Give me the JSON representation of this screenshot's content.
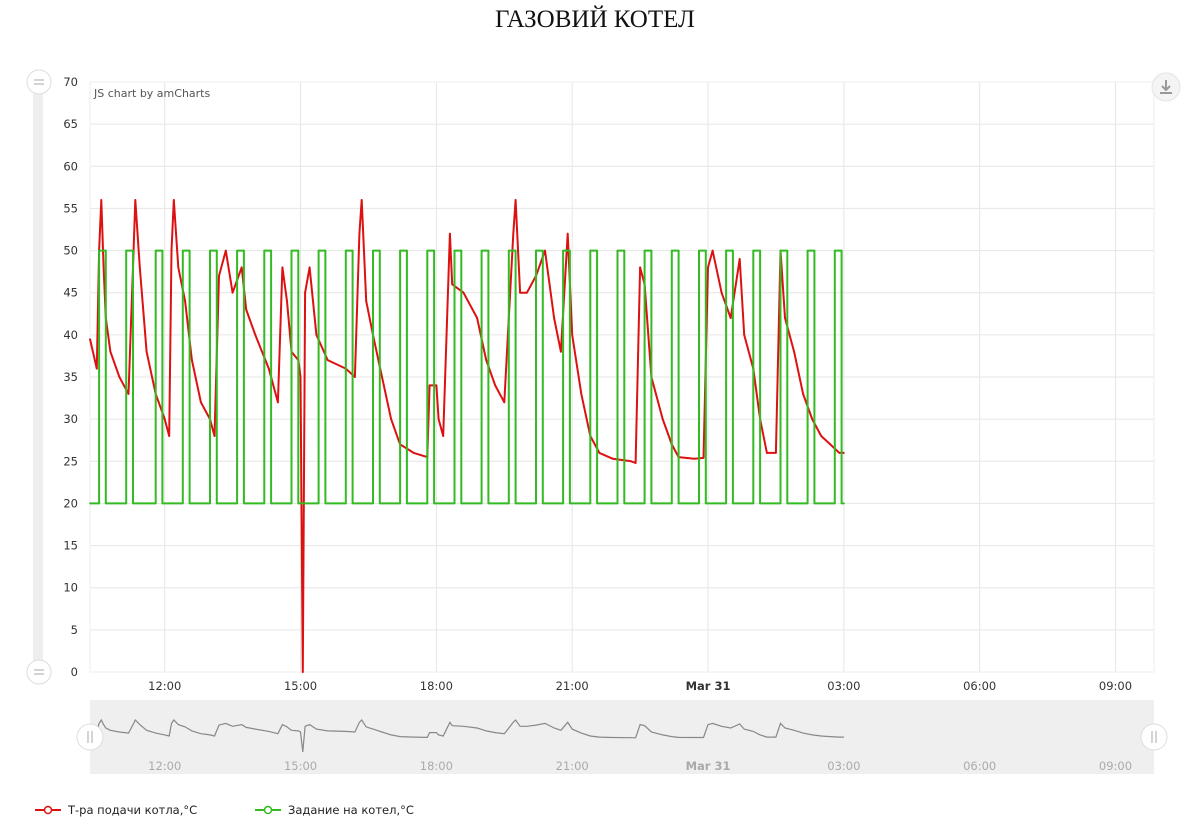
{
  "title": "ГАЗОВИЙ КОТЕЛ",
  "credit": "JS chart by amCharts",
  "chart_data": {
    "type": "line",
    "title": "ГАЗОВИЙ КОТЕЛ",
    "x_unit": "hours since midnight Mar 30",
    "x_range": [
      10.35,
      33.85
    ],
    "ylim": [
      0,
      70
    ],
    "y_ticks": [
      0,
      5,
      10,
      15,
      20,
      25,
      30,
      35,
      40,
      45,
      50,
      55,
      60,
      65,
      70
    ],
    "x_ticks": [
      {
        "x": 12,
        "label": "12:00",
        "bold": false
      },
      {
        "x": 15,
        "label": "15:00",
        "bold": false
      },
      {
        "x": 18,
        "label": "18:00",
        "bold": false
      },
      {
        "x": 21,
        "label": "21:00",
        "bold": false
      },
      {
        "x": 24,
        "label": "Mar 31",
        "bold": true
      },
      {
        "x": 27,
        "label": "03:00",
        "bold": false
      },
      {
        "x": 30,
        "label": "06:00",
        "bold": false
      },
      {
        "x": 33,
        "label": "09:00",
        "bold": false
      }
    ],
    "grid": true,
    "legend_position": "bottom",
    "series": [
      {
        "name": "Т-ра подачи котла,°С",
        "color": "#dd1111",
        "points": [
          [
            10.35,
            39.5
          ],
          [
            10.5,
            36
          ],
          [
            10.55,
            50
          ],
          [
            10.6,
            56
          ],
          [
            10.65,
            48
          ],
          [
            10.7,
            42
          ],
          [
            10.8,
            38
          ],
          [
            11,
            35
          ],
          [
            11.2,
            33
          ],
          [
            11.3,
            48
          ],
          [
            11.35,
            56
          ],
          [
            11.45,
            48
          ],
          [
            11.6,
            38
          ],
          [
            11.8,
            33
          ],
          [
            12,
            30
          ],
          [
            12.1,
            28
          ],
          [
            12.15,
            50
          ],
          [
            12.2,
            56
          ],
          [
            12.3,
            48
          ],
          [
            12.45,
            44
          ],
          [
            12.6,
            37
          ],
          [
            12.8,
            32
          ],
          [
            13,
            30
          ],
          [
            13.1,
            28
          ],
          [
            13.2,
            47
          ],
          [
            13.35,
            50
          ],
          [
            13.5,
            45
          ],
          [
            13.7,
            48
          ],
          [
            13.8,
            43
          ],
          [
            14,
            40
          ],
          [
            14.3,
            36
          ],
          [
            14.5,
            32
          ],
          [
            14.6,
            48
          ],
          [
            14.7,
            44
          ],
          [
            14.8,
            38
          ],
          [
            14.95,
            37
          ],
          [
            15,
            35
          ],
          [
            15.05,
            0
          ],
          [
            15.1,
            45
          ],
          [
            15.2,
            48
          ],
          [
            15.35,
            40
          ],
          [
            15.6,
            37
          ],
          [
            16,
            36
          ],
          [
            16.2,
            35
          ],
          [
            16.3,
            52
          ],
          [
            16.35,
            56
          ],
          [
            16.45,
            44
          ],
          [
            16.6,
            40
          ],
          [
            16.8,
            35
          ],
          [
            17,
            30
          ],
          [
            17.2,
            27
          ],
          [
            17.5,
            26
          ],
          [
            17.8,
            25.5
          ],
          [
            17.85,
            34
          ],
          [
            18,
            34
          ],
          [
            18.05,
            30
          ],
          [
            18.15,
            28
          ],
          [
            18.3,
            52
          ],
          [
            18.35,
            46
          ],
          [
            18.6,
            45
          ],
          [
            18.9,
            42
          ],
          [
            19.1,
            37
          ],
          [
            19.3,
            34
          ],
          [
            19.5,
            32
          ],
          [
            19.7,
            52
          ],
          [
            19.75,
            56
          ],
          [
            19.85,
            45
          ],
          [
            20,
            45
          ],
          [
            20.2,
            47
          ],
          [
            20.4,
            50
          ],
          [
            20.6,
            42
          ],
          [
            20.75,
            38
          ],
          [
            20.9,
            52
          ],
          [
            21,
            40
          ],
          [
            21.2,
            33
          ],
          [
            21.4,
            28
          ],
          [
            21.6,
            26
          ],
          [
            21.9,
            25.3
          ],
          [
            22.3,
            25
          ],
          [
            22.4,
            24.8
          ],
          [
            22.5,
            48
          ],
          [
            22.6,
            46
          ],
          [
            22.75,
            35
          ],
          [
            23,
            30
          ],
          [
            23.2,
            27
          ],
          [
            23.35,
            25.5
          ],
          [
            23.7,
            25.3
          ],
          [
            23.9,
            25.4
          ],
          [
            24,
            48
          ],
          [
            24.1,
            50
          ],
          [
            24.3,
            45
          ],
          [
            24.5,
            42
          ],
          [
            24.7,
            49
          ],
          [
            24.8,
            40
          ],
          [
            25,
            36
          ],
          [
            25.15,
            30
          ],
          [
            25.3,
            26
          ],
          [
            25.5,
            26
          ],
          [
            25.6,
            50
          ],
          [
            25.7,
            42
          ],
          [
            25.9,
            38
          ],
          [
            26.1,
            33
          ],
          [
            26.3,
            30
          ],
          [
            26.5,
            28
          ],
          [
            26.7,
            27
          ],
          [
            26.9,
            26
          ],
          [
            27,
            26
          ]
        ]
      },
      {
        "name": "Задание на котел,°С",
        "color": "#33bb22",
        "points": [
          [
            10.35,
            20
          ],
          [
            10.55,
            20
          ],
          [
            10.55,
            50
          ],
          [
            10.7,
            50
          ],
          [
            10.7,
            20
          ],
          [
            11.15,
            20
          ],
          [
            11.15,
            50
          ],
          [
            11.3,
            50
          ],
          [
            11.3,
            20
          ],
          [
            11.8,
            20
          ],
          [
            11.8,
            50
          ],
          [
            11.95,
            50
          ],
          [
            11.95,
            20
          ],
          [
            12.4,
            20
          ],
          [
            12.4,
            50
          ],
          [
            12.55,
            50
          ],
          [
            12.55,
            20
          ],
          [
            13.0,
            20
          ],
          [
            13.0,
            50
          ],
          [
            13.15,
            50
          ],
          [
            13.15,
            20
          ],
          [
            13.6,
            20
          ],
          [
            13.6,
            50
          ],
          [
            13.75,
            50
          ],
          [
            13.75,
            20
          ],
          [
            14.2,
            20
          ],
          [
            14.2,
            50
          ],
          [
            14.35,
            50
          ],
          [
            14.35,
            20
          ],
          [
            14.8,
            20
          ],
          [
            14.8,
            50
          ],
          [
            14.95,
            50
          ],
          [
            14.95,
            20
          ],
          [
            15.4,
            20
          ],
          [
            15.4,
            50
          ],
          [
            15.55,
            50
          ],
          [
            15.55,
            20
          ],
          [
            16.0,
            20
          ],
          [
            16.0,
            50
          ],
          [
            16.15,
            50
          ],
          [
            16.15,
            20
          ],
          [
            16.6,
            20
          ],
          [
            16.6,
            50
          ],
          [
            16.75,
            50
          ],
          [
            16.75,
            20
          ],
          [
            17.2,
            20
          ],
          [
            17.2,
            50
          ],
          [
            17.35,
            50
          ],
          [
            17.35,
            20
          ],
          [
            17.8,
            20
          ],
          [
            17.8,
            50
          ],
          [
            17.95,
            50
          ],
          [
            17.95,
            20
          ],
          [
            18.4,
            20
          ],
          [
            18.4,
            50
          ],
          [
            18.55,
            50
          ],
          [
            18.55,
            20
          ],
          [
            19.0,
            20
          ],
          [
            19.0,
            50
          ],
          [
            19.15,
            50
          ],
          [
            19.15,
            20
          ],
          [
            19.6,
            20
          ],
          [
            19.6,
            50
          ],
          [
            19.75,
            50
          ],
          [
            19.75,
            20
          ],
          [
            20.2,
            20
          ],
          [
            20.2,
            50
          ],
          [
            20.35,
            50
          ],
          [
            20.35,
            20
          ],
          [
            20.8,
            20
          ],
          [
            20.8,
            50
          ],
          [
            20.95,
            50
          ],
          [
            20.95,
            20
          ],
          [
            21.4,
            20
          ],
          [
            21.4,
            50
          ],
          [
            21.55,
            50
          ],
          [
            21.55,
            20
          ],
          [
            22.0,
            20
          ],
          [
            22.0,
            50
          ],
          [
            22.15,
            50
          ],
          [
            22.15,
            20
          ],
          [
            22.6,
            20
          ],
          [
            22.6,
            50
          ],
          [
            22.75,
            50
          ],
          [
            22.75,
            20
          ],
          [
            23.2,
            20
          ],
          [
            23.2,
            50
          ],
          [
            23.35,
            50
          ],
          [
            23.35,
            20
          ],
          [
            23.8,
            20
          ],
          [
            23.8,
            50
          ],
          [
            23.95,
            50
          ],
          [
            23.95,
            20
          ],
          [
            24.4,
            20
          ],
          [
            24.4,
            50
          ],
          [
            24.55,
            50
          ],
          [
            24.55,
            20
          ],
          [
            25.0,
            20
          ],
          [
            25.0,
            50
          ],
          [
            25.15,
            50
          ],
          [
            25.15,
            20
          ],
          [
            25.6,
            20
          ],
          [
            25.6,
            50
          ],
          [
            25.75,
            50
          ],
          [
            25.75,
            20
          ],
          [
            26.2,
            20
          ],
          [
            26.2,
            50
          ],
          [
            26.35,
            50
          ],
          [
            26.35,
            20
          ],
          [
            26.8,
            20
          ],
          [
            26.8,
            50
          ],
          [
            26.95,
            50
          ],
          [
            26.95,
            20
          ],
          [
            27.0,
            20
          ]
        ]
      }
    ]
  },
  "legend": [
    {
      "label": "Т-ра подачи котла,°С",
      "color": "#dd1111"
    },
    {
      "label": "Задание на котел,°С",
      "color": "#33bb22"
    }
  ]
}
